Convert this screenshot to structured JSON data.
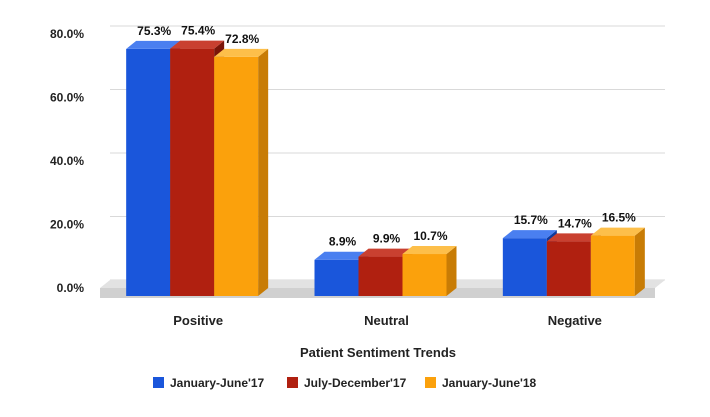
{
  "chart_data": {
    "type": "bar",
    "categories": [
      "Positive",
      "Neutral",
      "Negative"
    ],
    "series": [
      {
        "name": "January-June'17",
        "values": [
          75.3,
          8.9,
          15.7
        ],
        "color": "#1a56db",
        "side": "#0e3a9e",
        "top": "#4a7ff0"
      },
      {
        "name": "July-December'17",
        "values": [
          75.4,
          9.9,
          14.7
        ],
        "color": "#b02010",
        "side": "#7a1409",
        "top": "#c94030"
      },
      {
        "name": "January-June'18",
        "values": [
          72.8,
          10.7,
          16.5
        ],
        "color": "#fba10c",
        "side": "#c87c05",
        "top": "#fdbf4a"
      }
    ],
    "data_labels": [
      [
        "75.3%",
        "8.9%",
        "15.7%"
      ],
      [
        "75.4%",
        "9.9%",
        "14.7%"
      ],
      [
        "72.8%",
        "10.7%",
        "16.5%"
      ]
    ],
    "y_ticks": [
      0,
      20,
      40,
      60,
      80
    ],
    "y_tick_labels": [
      "0.0%",
      "20.0%",
      "40.0%",
      "60.0%",
      "80.0%"
    ],
    "ylim": [
      0,
      80
    ],
    "xlabel": "Patient Sentiment Trends",
    "ylabel": "",
    "grid": true,
    "legend_position": "bottom"
  }
}
